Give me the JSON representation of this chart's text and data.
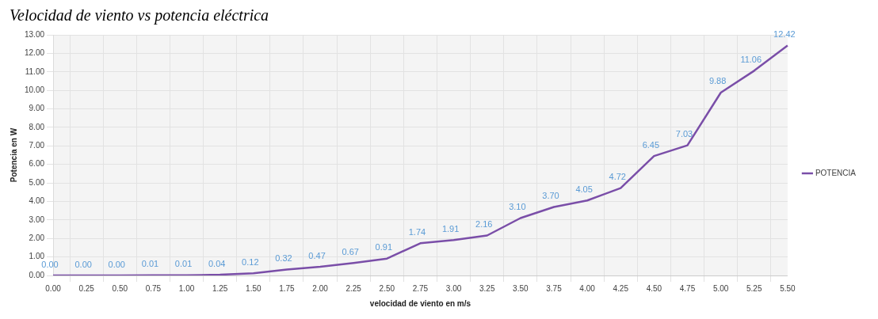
{
  "chart_data": {
    "type": "line",
    "title": "Velocidad de viento vs potencia eléctrica",
    "xlabel": "velocidad de viento en m/s",
    "ylabel": "Potencia en W",
    "categories": [
      "0.00",
      "0.25",
      "0.50",
      "0.75",
      "1.00",
      "1.25",
      "1.50",
      "1.75",
      "2.00",
      "2.25",
      "2.50",
      "2.75",
      "3.00",
      "3.25",
      "3.50",
      "3.75",
      "4.00",
      "4.25",
      "4.50",
      "4.75",
      "5.00",
      "5.25",
      "5.50"
    ],
    "series": [
      {
        "name": "POTENCIA",
        "color": "#7a4ea8",
        "values": [
          0,
          0,
          0,
          0.01,
          0.01,
          0.04,
          0.12,
          0.32,
          0.47,
          0.67,
          0.91,
          1.74,
          1.91,
          2.16,
          3.1,
          3.7,
          4.05,
          4.72,
          6.45,
          7.03,
          9.88,
          11.06,
          12.42
        ],
        "value_labels": [
          "0.00",
          "0.00",
          "0.00",
          "0.01",
          "0.01",
          "0.04",
          "0.12",
          "0.32",
          "0.47",
          "0.67",
          "0.91",
          "1.74",
          "1.91",
          "2.16",
          "3.10",
          "3.70",
          "4.05",
          "4.72",
          "6.45",
          "7.03",
          "9.88",
          "11.06",
          "12.42"
        ]
      }
    ],
    "ylim": [
      0,
      13
    ],
    "yticks": [
      {
        "value": 0,
        "label": "0.00"
      },
      {
        "value": 1,
        "label": "1.00"
      },
      {
        "value": 2,
        "label": "2.00"
      },
      {
        "value": 3,
        "label": "3.00"
      },
      {
        "value": 4,
        "label": "4.00"
      },
      {
        "value": 5,
        "label": "5.00"
      },
      {
        "value": 6,
        "label": "6.00"
      },
      {
        "value": 7,
        "label": "7.00"
      },
      {
        "value": 8,
        "label": "8.00"
      },
      {
        "value": 9,
        "label": "9.00"
      },
      {
        "value": 10,
        "label": "10.00"
      },
      {
        "value": 11,
        "label": "11.00"
      },
      {
        "value": 12,
        "label": "12.00"
      },
      {
        "value": 13,
        "label": "13.00"
      }
    ],
    "grid": true,
    "legend": "right",
    "marker": "none",
    "line_style": "solid"
  }
}
